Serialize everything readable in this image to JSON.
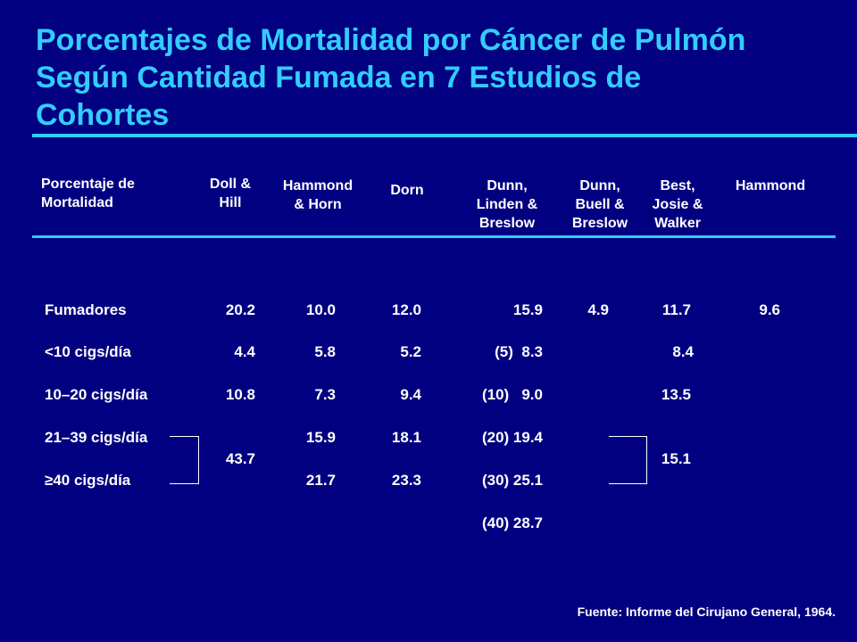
{
  "title": {
    "line1": "Porcentajes de Mortalidad por Cáncer de Pulmón",
    "line2": "Según Cantidad Fumada en 7 Estudios de",
    "line3": "Cohortes"
  },
  "colors": {
    "background": "#000080",
    "title": "#33ccff",
    "text": "#ffffff",
    "rule": "#33ccff"
  },
  "table": {
    "headers": [
      {
        "line1": "Porcentaje de",
        "line2": "Mortalidad"
      },
      {
        "line1": "Doll &",
        "line2": "Hill"
      },
      {
        "line1": "Hammond",
        "line2": "& Horn"
      },
      {
        "line1": "Dorn"
      },
      {
        "line1": "Dunn,",
        "line2": "Linden &",
        "line3": "Breslow"
      },
      {
        "line1": "Dunn,",
        "line2": "Buell &",
        "line3": "Breslow"
      },
      {
        "line1": "Best,",
        "line2": "Josie &",
        "line3": "Walker"
      },
      {
        "line1": "Hammond"
      }
    ],
    "row_labels": [
      "Fumadores",
      "<10 cigs/día",
      "10–20 cigs/día",
      "21–39 cigs/día",
      "≥40 cigs/día"
    ],
    "doll_hill": [
      "20.2",
      "4.4",
      "10.8",
      "43.7"
    ],
    "hammond_horn": [
      "10.0",
      "5.8",
      "7.3",
      "15.9",
      "21.7"
    ],
    "dorn": [
      "12.0",
      "5.2",
      "9.4",
      "18.1",
      "23.3"
    ],
    "dunn_linden_breslow": [
      "15.9",
      "(5)  8.3",
      "(10)   9.0",
      "(20) 19.4",
      "(30) 25.1",
      "(40) 28.7"
    ],
    "dunn_buell_breslow": [
      "4.9"
    ],
    "best_josie_walker": [
      "11.7",
      "8.4",
      "13.5",
      "15.1"
    ],
    "hammond": [
      "9.6"
    ]
  },
  "source": "Fuente: Informe del Cirujano General, 1964."
}
